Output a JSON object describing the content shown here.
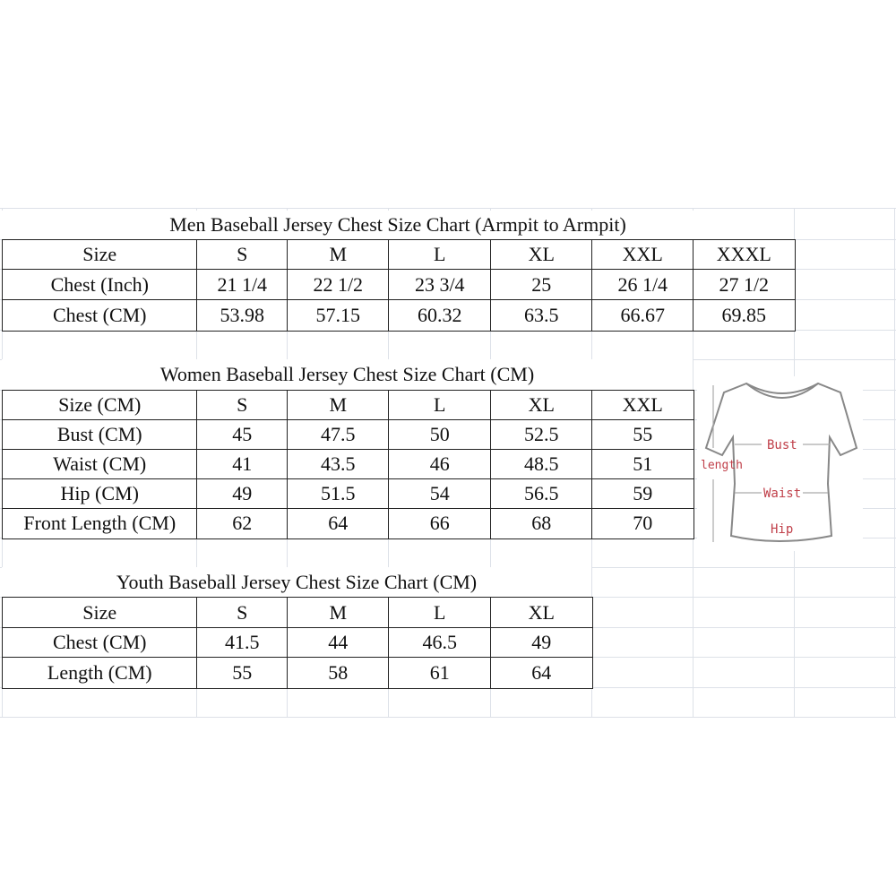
{
  "men": {
    "title": "Men Baseball Jersey Chest Size Chart (Armpit to Armpit)",
    "rows": [
      [
        "Size",
        "S",
        "M",
        "L",
        "XL",
        "XXL",
        "XXXL"
      ],
      [
        "Chest (Inch)",
        "21 1/4",
        "22 1/2",
        "23 3/4",
        "25",
        "26 1/4",
        "27 1/2"
      ],
      [
        "Chest (CM)",
        "53.98",
        "57.15",
        "60.32",
        "63.5",
        "66.67",
        "69.85"
      ]
    ]
  },
  "women": {
    "title": "Women Baseball Jersey Chest Size Chart (CM)",
    "rows": [
      [
        "Size (CM)",
        "S",
        "M",
        "L",
        "XL",
        "XXL"
      ],
      [
        "Bust (CM)",
        "45",
        "47.5",
        "50",
        "52.5",
        "55"
      ],
      [
        "Waist (CM)",
        "41",
        "43.5",
        "46",
        "48.5",
        "51"
      ],
      [
        "Hip (CM)",
        "49",
        "51.5",
        "54",
        "56.5",
        "59"
      ],
      [
        "Front Length (CM)",
        "62",
        "64",
        "66",
        "68",
        "70"
      ]
    ]
  },
  "youth": {
    "title": "Youth Baseball Jersey Chest Size Chart (CM)",
    "rows": [
      [
        "Size",
        "S",
        "M",
        "L",
        "XL"
      ],
      [
        "Chest (CM)",
        "41.5",
        "44",
        "46.5",
        "49"
      ],
      [
        "Length (CM)",
        "55",
        "58",
        "61",
        "64"
      ]
    ]
  },
  "diagram": {
    "labels": {
      "bust": "Bust",
      "waist": "Waist",
      "hip": "Hip",
      "length": "length"
    },
    "label_color": "#c0404a"
  }
}
